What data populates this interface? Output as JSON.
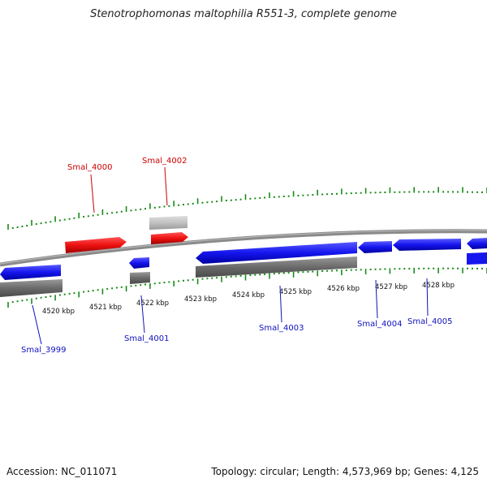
{
  "title": "Stenotrophomonas maltophilia R551-3, complete genome",
  "footer": {
    "accession": "Accession: NC_011071",
    "summary": "Topology: circular; Length: 4,573,969 bp; Genes: 4,125"
  },
  "colors": {
    "forward_gene": "#e31a1c",
    "reverse_gene": "#1f1fe0",
    "forward_label": "#cc0000",
    "reverse_label": "#1010c0",
    "backbone": "#8a8a8a",
    "tick": "#1a8a1a",
    "reverse_cds_track": "#707070",
    "forward_cds_track": "#bcbcbc"
  },
  "ruler": {
    "unit": "kbp",
    "labels": [
      "4520 kbp",
      "4521 kbp",
      "4522 kbp",
      "4523 kbp",
      "4524 kbp",
      "4525 kbp",
      "4526 kbp",
      "4527 kbp",
      "4528 kbp"
    ]
  },
  "genes": [
    {
      "name": "Smal_3999",
      "strand": "reverse"
    },
    {
      "name": "Smal_4000",
      "strand": "forward"
    },
    {
      "name": "Smal_4001",
      "strand": "reverse"
    },
    {
      "name": "Smal_4002",
      "strand": "forward"
    },
    {
      "name": "Smal_4003",
      "strand": "reverse"
    },
    {
      "name": "Smal_4004",
      "strand": "reverse"
    },
    {
      "name": "Smal_4005",
      "strand": "reverse"
    }
  ]
}
